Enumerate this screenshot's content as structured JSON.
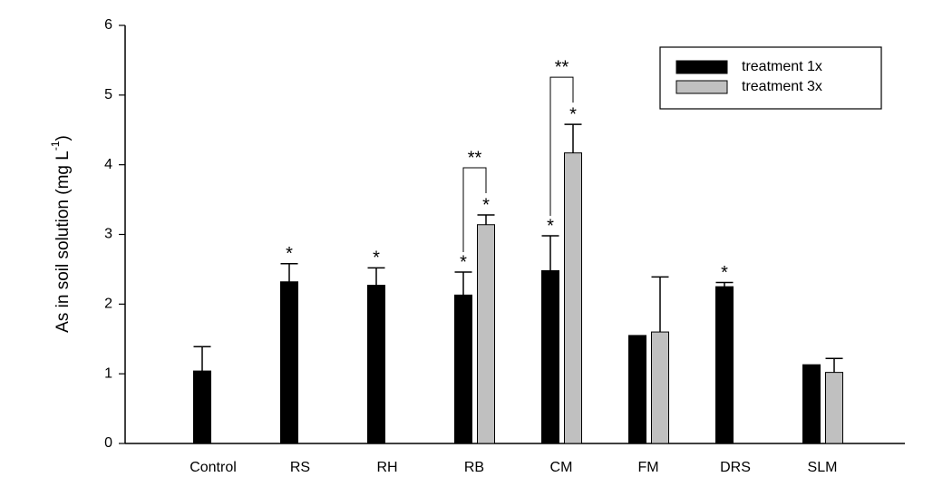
{
  "chart_data": {
    "type": "bar",
    "ylabel": [
      "As in soil solution (mg L",
      "-1",
      ")"
    ],
    "categories": [
      "Control",
      "RS",
      "RH",
      "RB",
      "CM",
      "FM",
      "DRS",
      "SLM"
    ],
    "series": [
      {
        "name": "treatment 1x",
        "color": "#000000",
        "values": [
          1.04,
          2.32,
          2.27,
          2.13,
          2.48,
          1.55,
          2.25,
          1.13
        ],
        "errors": [
          0.35,
          0.26,
          0.25,
          0.33,
          0.5,
          null,
          0.06,
          null
        ],
        "significance": [
          null,
          "*",
          "*",
          "*",
          "*",
          null,
          "*",
          null
        ]
      },
      {
        "name": "treatment 3x",
        "color": "#c0c0c0",
        "values": [
          null,
          null,
          null,
          3.14,
          4.17,
          1.6,
          null,
          1.02
        ],
        "errors": [
          null,
          null,
          null,
          0.14,
          0.41,
          0.79,
          null,
          0.2
        ],
        "significance": [
          null,
          null,
          null,
          "*",
          "*",
          null,
          null,
          null
        ]
      }
    ],
    "pair_significance": [
      null,
      null,
      null,
      "**",
      "**",
      null,
      null,
      null
    ],
    "ylim": [
      0,
      6
    ],
    "yticks": [
      0,
      1,
      2,
      3,
      4,
      5,
      6
    ],
    "grid": false,
    "legend": "upper right"
  }
}
